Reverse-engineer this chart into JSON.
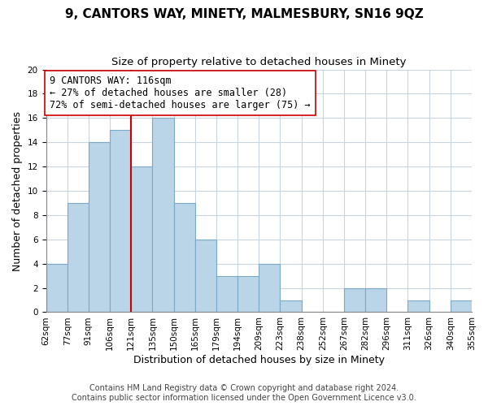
{
  "title": "9, CANTORS WAY, MINETY, MALMESBURY, SN16 9QZ",
  "subtitle": "Size of property relative to detached houses in Minety",
  "xlabel": "Distribution of detached houses by size in Minety",
  "ylabel": "Number of detached properties",
  "bar_labels": [
    "62sqm",
    "77sqm",
    "91sqm",
    "106sqm",
    "121sqm",
    "135sqm",
    "150sqm",
    "165sqm",
    "179sqm",
    "194sqm",
    "209sqm",
    "223sqm",
    "238sqm",
    "252sqm",
    "267sqm",
    "282sqm",
    "296sqm",
    "311sqm",
    "326sqm",
    "340sqm",
    "355sqm"
  ],
  "bar_values": [
    4,
    9,
    14,
    15,
    12,
    16,
    9,
    6,
    3,
    3,
    4,
    1,
    0,
    0,
    2,
    2,
    0,
    1,
    0,
    1
  ],
  "bar_color": "#bad4e8",
  "bar_edge_color": "#7aaac8",
  "vline_color": "#cc0000",
  "vline_index": 4,
  "annotation_text_line1": "9 CANTORS WAY: 116sqm",
  "annotation_text_line2": "← 27% of detached houses are smaller (28)",
  "annotation_text_line3": "72% of semi-detached houses are larger (75) →",
  "annotation_box_color": "#ffffff",
  "annotation_box_edge_color": "#cc0000",
  "ylim": [
    0,
    20
  ],
  "yticks": [
    0,
    2,
    4,
    6,
    8,
    10,
    12,
    14,
    16,
    18,
    20
  ],
  "grid_color": "#c8d4de",
  "footer_line1": "Contains HM Land Registry data © Crown copyright and database right 2024.",
  "footer_line2": "Contains public sector information licensed under the Open Government Licence v3.0.",
  "title_fontsize": 11,
  "subtitle_fontsize": 9.5,
  "xlabel_fontsize": 9,
  "ylabel_fontsize": 9,
  "tick_fontsize": 7.5,
  "annotation_fontsize": 8.5,
  "footer_fontsize": 7
}
